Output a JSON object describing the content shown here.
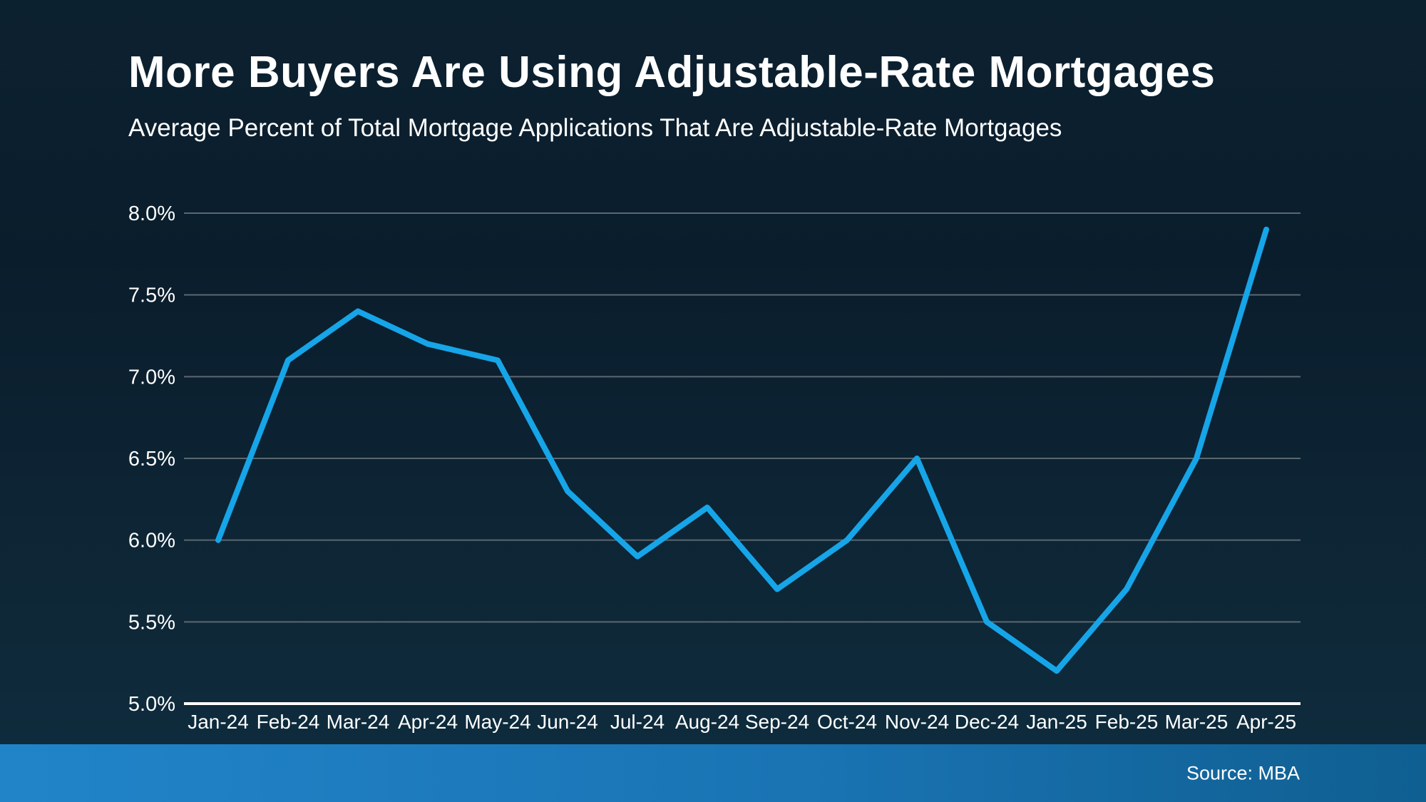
{
  "header": {
    "title": "More Buyers Are Using Adjustable-Rate Mortgages",
    "subtitle": "Average Percent of Total Mortgage Applications That Are Adjustable-Rate Mortgages"
  },
  "footer": {
    "source": "Source: MBA"
  },
  "chart_data": {
    "type": "line",
    "title": "More Buyers Are Using Adjustable-Rate Mortgages",
    "subtitle": "Average Percent of Total Mortgage Applications That Are Adjustable-Rate Mortgages",
    "categories": [
      "Jan-24",
      "Feb-24",
      "Mar-24",
      "Apr-24",
      "May-24",
      "Jun-24",
      "Jul-24",
      "Aug-24",
      "Sep-24",
      "Oct-24",
      "Nov-24",
      "Dec-24",
      "Jan-25",
      "Feb-25",
      "Mar-25",
      "Apr-25"
    ],
    "values": [
      6.0,
      7.1,
      7.4,
      7.2,
      7.1,
      6.3,
      5.9,
      6.2,
      5.7,
      6.0,
      6.5,
      5.5,
      5.2,
      5.7,
      6.5,
      7.9
    ],
    "xlabel": "",
    "ylabel": "",
    "ylim": [
      5.0,
      8.0
    ],
    "ytick_step": 0.5,
    "ytick_labels": [
      "5.0%",
      "5.5%",
      "6.0%",
      "6.5%",
      "7.0%",
      "7.5%",
      "8.0%"
    ],
    "grid": true,
    "legend_position": "none",
    "colors": {
      "line": "#16a5e8",
      "gridline": "#5c676f",
      "baseline_axis": "#ffffff",
      "tick_label": "#ffffff"
    }
  }
}
